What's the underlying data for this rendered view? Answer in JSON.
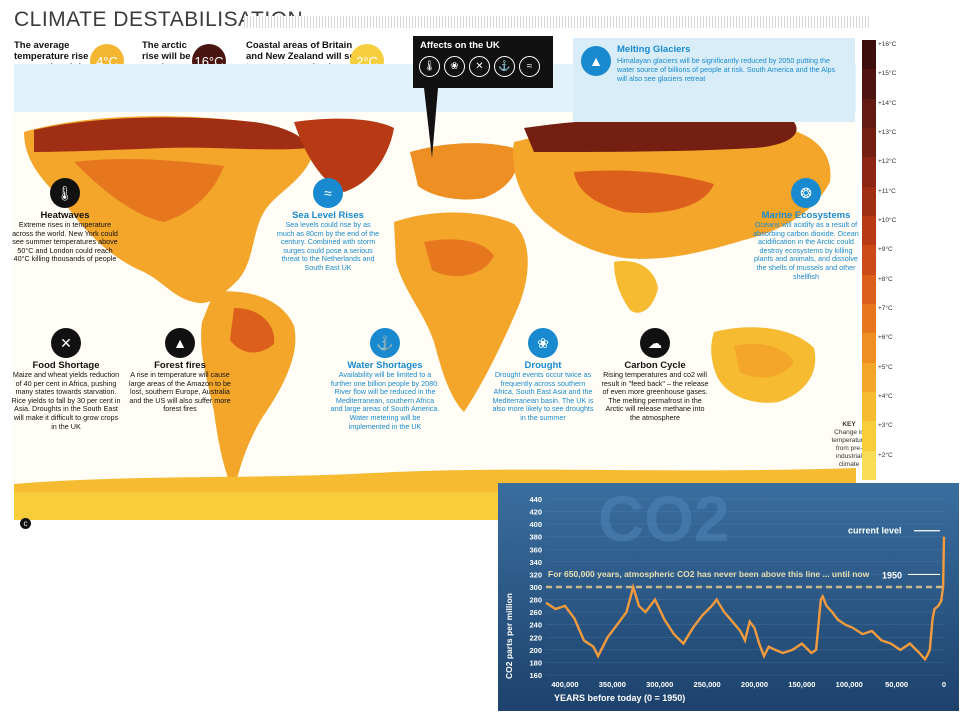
{
  "poster": {
    "title": "CLIMATE DESTABILISATION",
    "stats": [
      {
        "text": "The average temperature rise across the globe",
        "value": "4°C",
        "color": "#f5b631"
      },
      {
        "text": "The arctic rise will be as much as",
        "value": "16°C",
        "color": "#4a1410"
      },
      {
        "text": "Coastal areas of Britain and New Zealand will see temperatures rise by",
        "value": "2°C",
        "color": "#f7cf3e"
      }
    ],
    "affects": {
      "title": "Affects on the UK",
      "icons": [
        "thermometer-icon",
        "fish-icon",
        "no-food-icon",
        "tap-icon",
        "wave-icon"
      ]
    },
    "glaciers": {
      "title": "Melting Glaciers",
      "text": "Himalayan glaciers will be significantly reduced by 2050 putting the water source of billions of people at risk. South America and the Alps will also see glaciers retreat"
    },
    "features": [
      {
        "id": "heatwaves",
        "title": "Heatwaves",
        "text": "Extreme rises in temperature across the world. New York could see summer temperatures above 50°C and London could reach 40°C killing thousands of people",
        "theme": "black"
      },
      {
        "id": "sea-level",
        "title": "Sea Level Rises",
        "text": "Sea levels could rise by as much as 80cm by the end of the century. Combined with storm surges could pose a serious threat to the Netherlands and South East UK",
        "theme": "blue"
      },
      {
        "id": "marine",
        "title": "Marine Ecosystems",
        "text": "Oceans will acidify as a result of absorbing carbon dioxide. Ocean acidification in the Arctic could destroy ecosystems by killing plants and animals, and dissolve the shells of mussels and other shellfish",
        "theme": "blue"
      },
      {
        "id": "food",
        "title": "Food Shortage",
        "text": "Maize and wheat yields reduction of 40 per cent in Africa, pushing many states towards starvation. Rice yields to fall by 30 per cent in Asia. Droughts in the South East will make it difficult to grow crops in the UK",
        "theme": "black"
      },
      {
        "id": "fires",
        "title": "Forest fires",
        "text": "A rise in temperature will cause large areas of the Amazon to be lost, southern Europe, Australia and the US will also suffer more forest fires",
        "theme": "black"
      },
      {
        "id": "water",
        "title": "Water Shortages",
        "text": "Availability will be limited to a further one billion people by 2080. River flow will be reduced in the Mediterranean, southern Africa and large areas of South America. Water metering will be implemented in the UK",
        "theme": "blue"
      },
      {
        "id": "drought",
        "title": "Drought",
        "text": "Drought events occur twice as frequently across southern Africa, South East Asia and the Mediterranean basin. The UK is also more likely to see droughts in the summer",
        "theme": "blue"
      },
      {
        "id": "carbon",
        "title": "Carbon Cycle",
        "text": "Rising temperatures and co2 will result in \"feed back\" – the release of even more greenhouse gases. The melting permafrost in the Arctic will release methane into the atmosphere",
        "theme": "black"
      }
    ],
    "key": {
      "title": "KEY",
      "subtitle": "Change in temperature from pre-industrial climate",
      "labels": [
        "+16°C",
        "+15°C",
        "+14°C",
        "+13°C",
        "+12°C",
        "+11°C",
        "+10°C",
        "+9°C",
        "+8°C",
        "+7°C",
        "+6°C",
        "+5°C",
        "+4°C",
        "+3°C",
        "+2°C"
      ],
      "colors": [
        "#3d0f0c",
        "#4f1410",
        "#621a12",
        "#741f12",
        "#8a2613",
        "#a02e14",
        "#b83a15",
        "#cc4a17",
        "#dc5f1b",
        "#e6771f",
        "#ee8f24",
        "#f3a62a",
        "#f6bb31",
        "#f8cd3c",
        "#fadc55"
      ]
    }
  },
  "chart_data": {
    "type": "line",
    "title": "CO2",
    "xlabel": "YEARS before today (0 = 1950)",
    "ylabel": "CO2 parts per million",
    "x_ticks": [
      "400,000",
      "350,000",
      "300,000",
      "250,000",
      "200,000",
      "150,000",
      "100,000",
      "50,000",
      "0"
    ],
    "y_ticks": [
      160,
      180,
      200,
      220,
      240,
      260,
      280,
      300,
      320,
      340,
      360,
      380,
      400,
      420,
      440
    ],
    "xlim": [
      420000,
      0
    ],
    "ylim": [
      160,
      440
    ],
    "threshold": 300,
    "annotation": "For 650,000 years, atmospheric CO2 has never been above this line ... until now",
    "labels": {
      "current": "current level",
      "year": "1950"
    },
    "series": [
      {
        "x": [
          420000,
          410000,
          400000,
          390000,
          380000,
          370000,
          365000,
          355000,
          345000,
          335000,
          328000,
          322000,
          315000,
          305000,
          295000,
          285000,
          275000,
          265000,
          255000,
          245000,
          240000,
          232000,
          225000,
          215000,
          210000,
          205000,
          200000,
          195000,
          190000,
          185000,
          178000,
          170000,
          160000,
          150000,
          140000,
          135000,
          130000,
          128000,
          124000,
          118000,
          112000,
          104000,
          96000,
          86000,
          76000,
          66000,
          56000,
          46000,
          36000,
          26000,
          20000,
          18000,
          15000,
          12000,
          10000,
          6000,
          3000,
          1000,
          0
        ],
        "y": [
          275,
          265,
          270,
          250,
          215,
          205,
          190,
          220,
          240,
          260,
          300,
          270,
          260,
          280,
          248,
          225,
          210,
          235,
          255,
          270,
          280,
          260,
          248,
          230,
          215,
          245,
          235,
          210,
          190,
          205,
          200,
          195,
          200,
          210,
          195,
          200,
          280,
          285,
          270,
          260,
          248,
          240,
          235,
          225,
          230,
          215,
          210,
          200,
          210,
          195,
          185,
          190,
          200,
          250,
          265,
          270,
          278,
          300,
          380
        ]
      }
    ],
    "line_color": "#f29b3e"
  }
}
